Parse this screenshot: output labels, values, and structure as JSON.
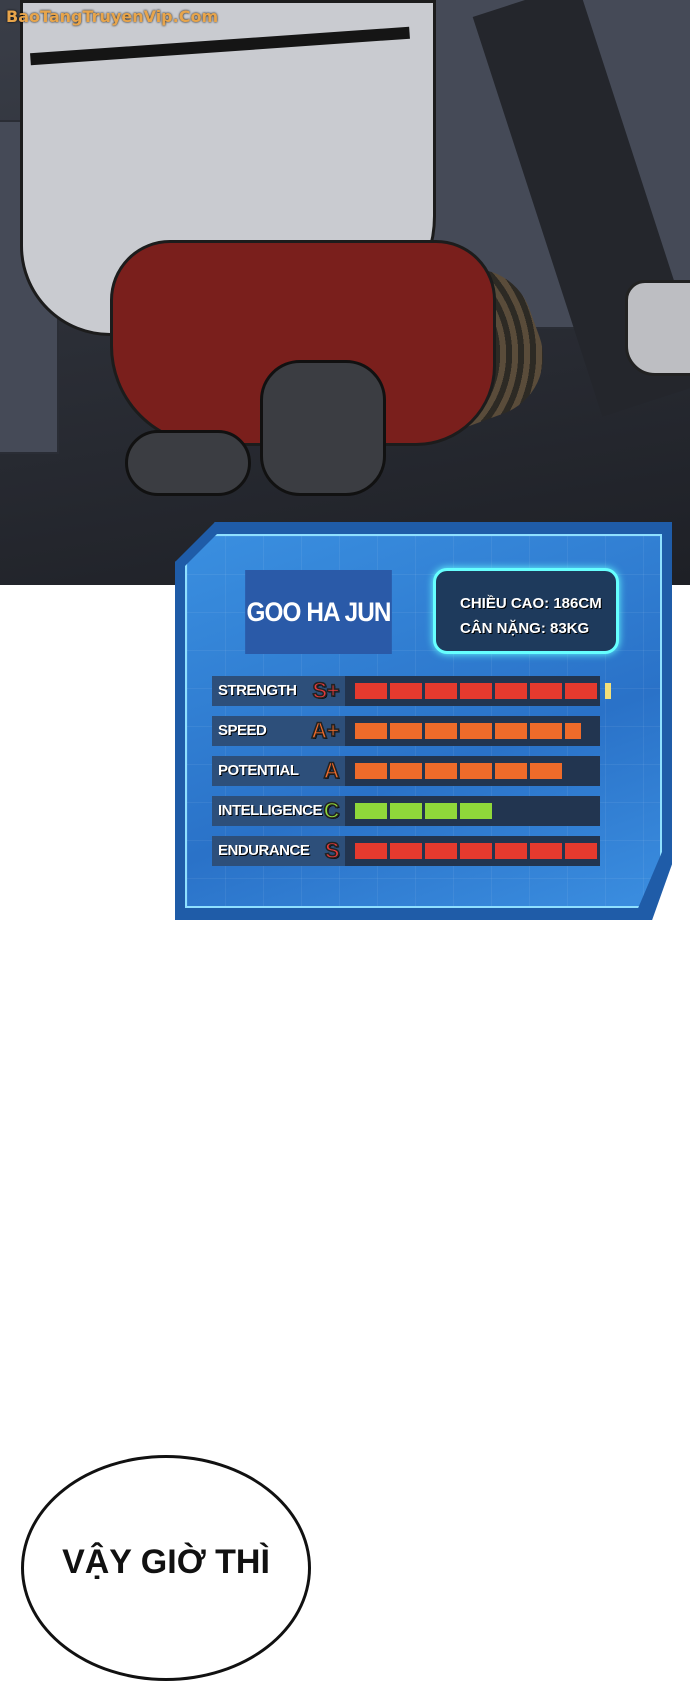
{
  "watermark": "BaoTangTruyenVip.Com",
  "stat_card": {
    "name": "GOO HA JUN",
    "height_line": "CHIỀU CAO: 186CM",
    "weight_line": "CÂN NẶNG: 83KG",
    "stats": [
      {
        "label": "STRENGTH",
        "grade": "S+",
        "segments": 7,
        "color": "#e53a2e",
        "grade_color": "#e53a3a",
        "overflow": true
      },
      {
        "label": "SPEED",
        "grade": "A+",
        "segments": 6.5,
        "color": "#ee6b2a",
        "grade_color": "#f06a2a",
        "overflow": false
      },
      {
        "label": "POTENTIAL",
        "grade": "A",
        "segments": 6,
        "color": "#ee6b2a",
        "grade_color": "#f06a2a",
        "overflow": false
      },
      {
        "label": "INTELLIGENCE",
        "grade": "C",
        "segments": 4,
        "color": "#8fd83a",
        "grade_color": "#8fd83a",
        "overflow": false
      },
      {
        "label": "ENDURANCE",
        "grade": "S",
        "segments": 7,
        "color": "#e53a2e",
        "grade_color": "#e53a3a",
        "overflow": false
      }
    ],
    "max_segments": 7
  },
  "speech_bubble": {
    "text": "VẬY GIỜ THÌ"
  }
}
